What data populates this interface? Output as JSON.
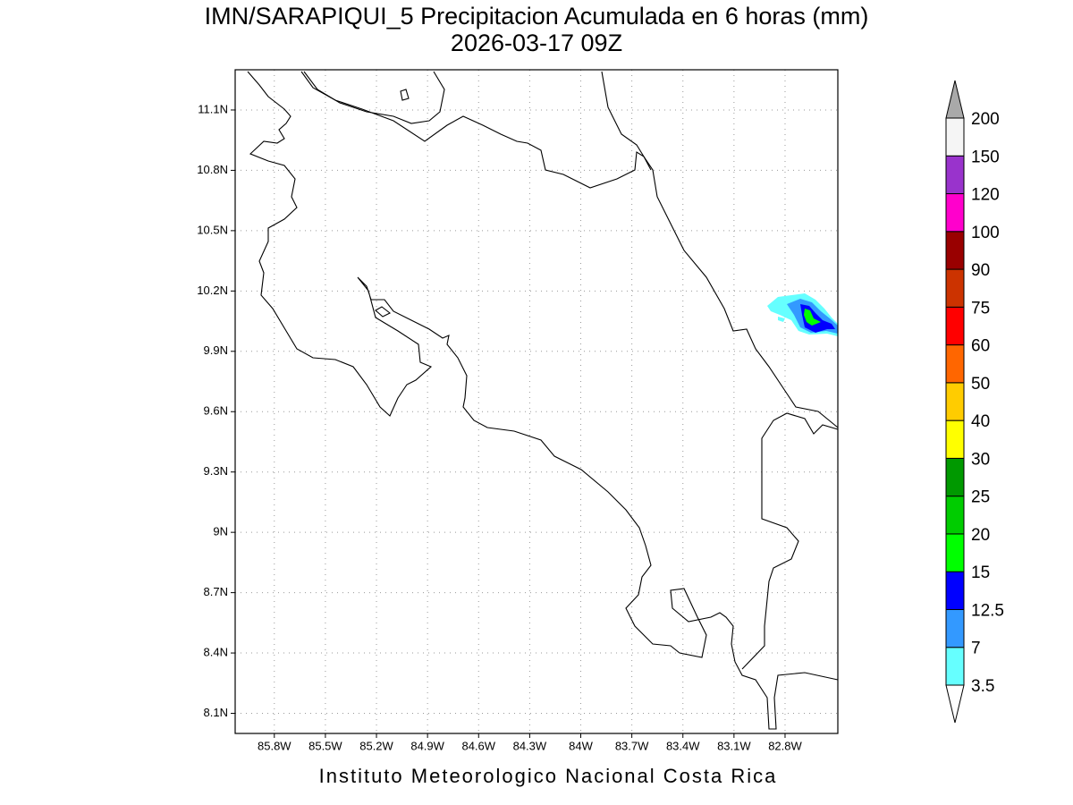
{
  "title": "IMN/SARAPIQUI_5 Precipitacion Acumulada en 6 horas (mm)",
  "subtitle": "2026-03-17 09Z",
  "footer": "Instituto Meteorologico Nacional Costa Rica",
  "map": {
    "xlim": [
      -86.03,
      -82.49
    ],
    "ylim": [
      8.0,
      11.3
    ],
    "grid": true,
    "xticks": [
      {
        "value": -85.8,
        "label": "85.8W"
      },
      {
        "value": -85.5,
        "label": "85.5W"
      },
      {
        "value": -85.2,
        "label": "85.2W"
      },
      {
        "value": -84.9,
        "label": "84.9W"
      },
      {
        "value": -84.6,
        "label": "84.6W"
      },
      {
        "value": -84.3,
        "label": "84.3W"
      },
      {
        "value": -84.0,
        "label": "84W"
      },
      {
        "value": -83.7,
        "label": "83.7W"
      },
      {
        "value": -83.4,
        "label": "83.4W"
      },
      {
        "value": -83.1,
        "label": "83.1W"
      },
      {
        "value": -82.8,
        "label": "82.8W"
      }
    ],
    "yticks": [
      {
        "value": 8.1,
        "label": "8.1N"
      },
      {
        "value": 8.4,
        "label": "8.4N"
      },
      {
        "value": 8.7,
        "label": "8.7N"
      },
      {
        "value": 9.0,
        "label": "9N"
      },
      {
        "value": 9.3,
        "label": "9.3N"
      },
      {
        "value": 9.6,
        "label": "9.6N"
      },
      {
        "value": 9.9,
        "label": "9.9N"
      },
      {
        "value": 10.2,
        "label": "10.2N"
      },
      {
        "value": 10.5,
        "label": "10.5N"
      },
      {
        "value": 10.8,
        "label": "10.8N"
      },
      {
        "value": 11.1,
        "label": "11.1N"
      }
    ]
  },
  "colorbar": {
    "levels": [
      3.5,
      7,
      12.5,
      15,
      20,
      25,
      30,
      40,
      50,
      60,
      75,
      90,
      100,
      120,
      150,
      200
    ],
    "colors": [
      "#ffffff",
      "#66ffff",
      "#3399ff",
      "#0000ff",
      "#00ff00",
      "#00cc00",
      "#009900",
      "#ffff00",
      "#ffcc00",
      "#ff6600",
      "#ff0000",
      "#cc3300",
      "#990000",
      "#ff00cc",
      "#9933cc",
      "#f5f5f5",
      "#a9a9a9"
    ]
  }
}
